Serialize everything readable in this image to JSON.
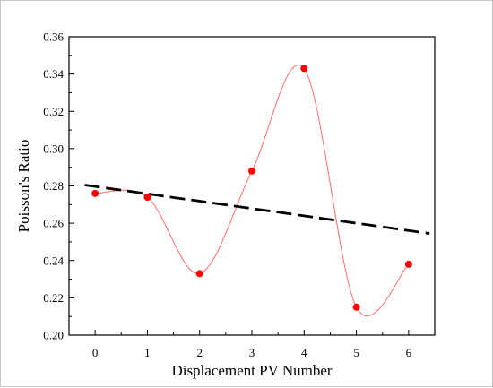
{
  "chart_data": {
    "type": "scatter",
    "title": "",
    "xlabel": "Displacement PV Number",
    "ylabel": "Poisson's Ratio",
    "xlim": [
      -0.5,
      6.5
    ],
    "ylim": [
      0.2,
      0.36
    ],
    "xticks": [
      "0",
      "1",
      "2",
      "3",
      "4",
      "5",
      "6"
    ],
    "yticks": [
      "0.20",
      "0.22",
      "0.24",
      "0.26",
      "0.28",
      "0.30",
      "0.32",
      "0.34",
      "0.36"
    ],
    "grid": false,
    "legend": "none",
    "series": [
      {
        "kind": "points",
        "color": "#ff0000",
        "x": [
          0,
          1,
          2,
          3,
          4,
          5,
          6
        ],
        "y": [
          0.276,
          0.274,
          0.233,
          0.288,
          0.343,
          0.215,
          0.238
        ]
      },
      {
        "kind": "spline",
        "color": "#ff6b6b",
        "x": [
          0,
          1,
          2,
          3,
          4,
          5,
          6
        ],
        "y": [
          0.276,
          0.274,
          0.233,
          0.288,
          0.343,
          0.215,
          0.238
        ]
      },
      {
        "kind": "trend",
        "style": "dashed",
        "color": "#000000",
        "x": [
          -0.2,
          6.4
        ],
        "y": [
          0.2805,
          0.2545
        ]
      }
    ]
  }
}
